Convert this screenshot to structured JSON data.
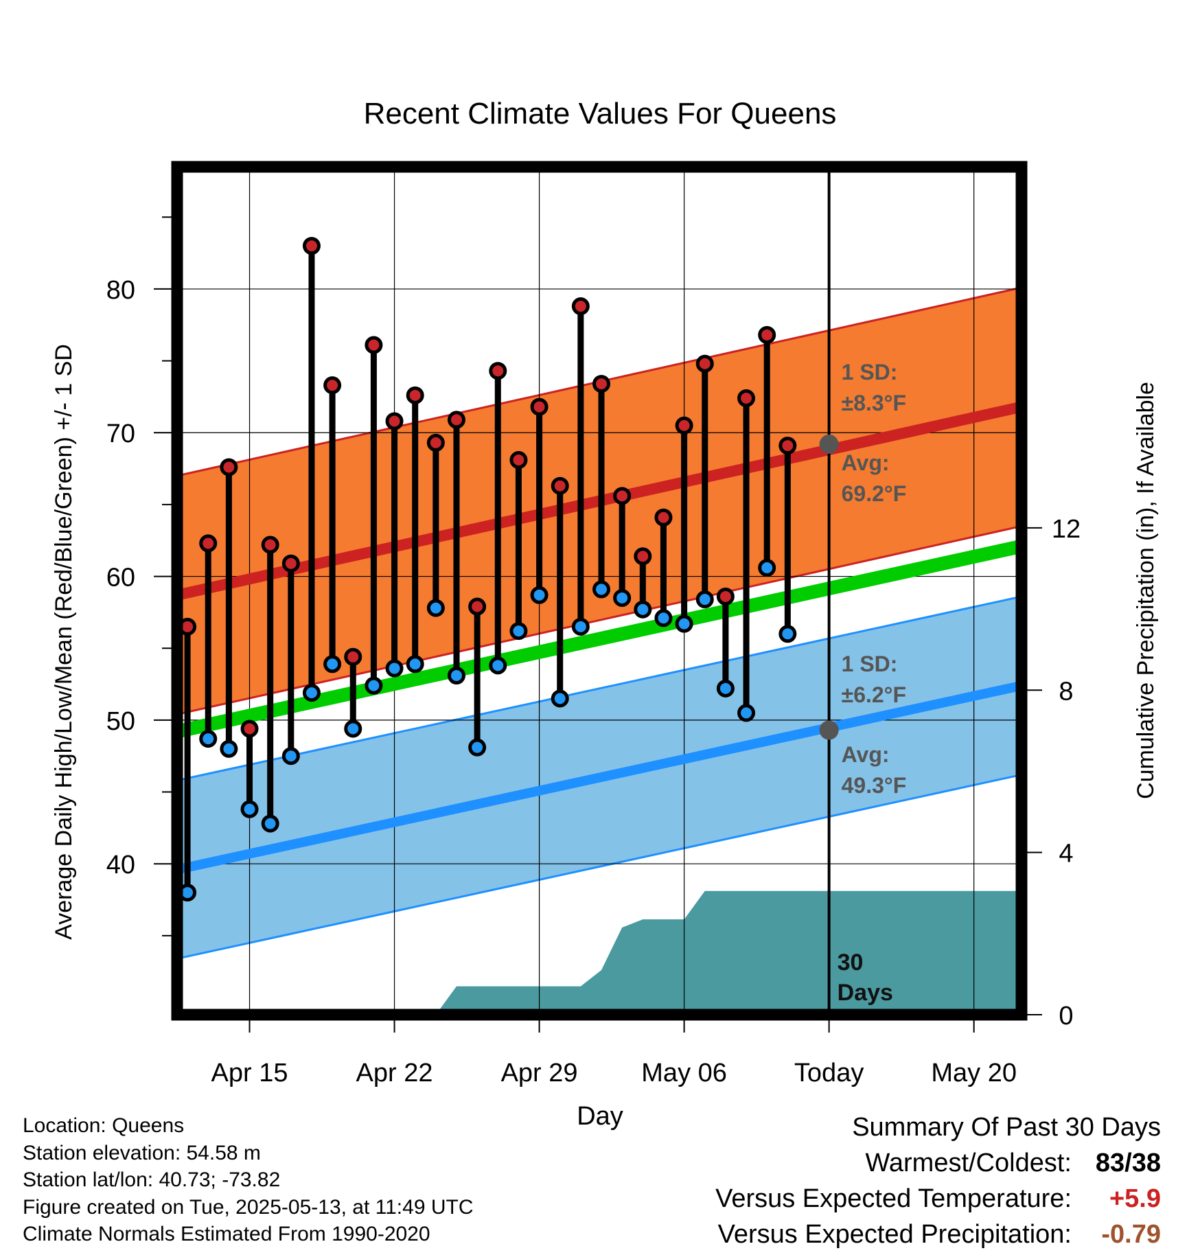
{
  "chart_data": {
    "type": "line",
    "title": "Recent Climate Values For Queens",
    "xlabel": "Day",
    "ylabel": "Average Daily High/Low/Mean (Red/Blue/Green) +/- 1 SD",
    "y2label": "Cumulative Precipitation (in), If Available",
    "x_start_date": "2025-04-12",
    "xlim_days": [
      -0.5,
      40.3
    ],
    "ylim": [
      29.5,
      88.5
    ],
    "y2lim": [
      0,
      20.9
    ],
    "x_ticks": [
      {
        "date": "2025-04-15",
        "label": "Apr 15"
      },
      {
        "date": "2025-04-22",
        "label": "Apr 22"
      },
      {
        "date": "2025-04-29",
        "label": "Apr 29"
      },
      {
        "date": "2025-05-06",
        "label": "May 06"
      },
      {
        "date": "2025-05-13",
        "label": "Today"
      },
      {
        "date": "2025-05-20",
        "label": "May 20"
      }
    ],
    "y_ticks": [
      40,
      50,
      60,
      70,
      80
    ],
    "y_minor_ticks": [
      35,
      45,
      55,
      65,
      75,
      85
    ],
    "y2_ticks": [
      0,
      4,
      8,
      12
    ],
    "today": "2025-05-13",
    "grid": true,
    "normal_high": {
      "start": 58.7,
      "end": 71.8,
      "sd_label": "1 SD:",
      "sd_value": "±8.3°F",
      "avg_label": "Avg:",
      "avg_value": "69.2°F",
      "today_value": 69.2
    },
    "normal_low": {
      "start": 39.6,
      "end": 52.4,
      "sd_label": "1 SD:",
      "sd_value": "±6.2°F",
      "avg_label": "Avg:",
      "avg_value": "49.3°F",
      "today_value": 49.3
    },
    "normal_mean": {
      "start": 49.2,
      "end": 62.1
    },
    "observed": [
      {
        "date": "2025-04-12",
        "high": 56.5,
        "low": 38.0
      },
      {
        "date": "2025-04-13",
        "high": 62.3,
        "low": 48.7
      },
      {
        "date": "2025-04-14",
        "high": 67.6,
        "low": 48.0
      },
      {
        "date": "2025-04-15",
        "high": 49.4,
        "low": 43.8
      },
      {
        "date": "2025-04-16",
        "high": 62.2,
        "low": 42.8
      },
      {
        "date": "2025-04-17",
        "high": 60.9,
        "low": 47.5
      },
      {
        "date": "2025-04-18",
        "high": 83.0,
        "low": 51.9
      },
      {
        "date": "2025-04-19",
        "high": 73.3,
        "low": 53.9
      },
      {
        "date": "2025-04-20",
        "high": 54.4,
        "low": 49.4
      },
      {
        "date": "2025-04-21",
        "high": 76.1,
        "low": 52.4
      },
      {
        "date": "2025-04-22",
        "high": 70.8,
        "low": 53.6
      },
      {
        "date": "2025-04-23",
        "high": 72.6,
        "low": 53.9
      },
      {
        "date": "2025-04-24",
        "high": 69.3,
        "low": 57.8
      },
      {
        "date": "2025-04-25",
        "high": 70.9,
        "low": 53.1
      },
      {
        "date": "2025-04-26",
        "high": 57.9,
        "low": 48.1
      },
      {
        "date": "2025-04-27",
        "high": 74.3,
        "low": 53.8
      },
      {
        "date": "2025-04-28",
        "high": 68.1,
        "low": 56.2
      },
      {
        "date": "2025-04-29",
        "high": 71.8,
        "low": 58.7
      },
      {
        "date": "2025-04-30",
        "high": 66.3,
        "low": 51.5
      },
      {
        "date": "2025-05-01",
        "high": 78.8,
        "low": 56.5
      },
      {
        "date": "2025-05-02",
        "high": 73.4,
        "low": 59.1
      },
      {
        "date": "2025-05-03",
        "high": 65.6,
        "low": 58.5
      },
      {
        "date": "2025-05-04",
        "high": 61.4,
        "low": 57.7
      },
      {
        "date": "2025-05-05",
        "high": 64.1,
        "low": 57.1
      },
      {
        "date": "2025-05-06",
        "high": 70.5,
        "low": 56.7
      },
      {
        "date": "2025-05-07",
        "high": 74.8,
        "low": 58.4
      },
      {
        "date": "2025-05-08",
        "high": 58.6,
        "low": 52.2
      },
      {
        "date": "2025-05-09",
        "high": 72.4,
        "low": 50.5
      },
      {
        "date": "2025-05-10",
        "high": 76.8,
        "low": 60.6
      },
      {
        "date": "2025-05-11",
        "high": 69.1,
        "low": 56.0
      }
    ],
    "cumulative_precip": [
      {
        "date": "2025-04-24",
        "value": 0.0
      },
      {
        "date": "2025-04-25",
        "value": 0.7
      },
      {
        "date": "2025-04-30",
        "value": 0.7
      },
      {
        "date": "2025-05-01",
        "value": 0.7
      },
      {
        "date": "2025-05-02",
        "value": 1.1
      },
      {
        "date": "2025-05-03",
        "value": 2.15
      },
      {
        "date": "2025-05-04",
        "value": 2.35
      },
      {
        "date": "2025-05-06",
        "value": 2.35
      },
      {
        "date": "2025-05-07",
        "value": 3.05
      },
      {
        "date": "2025-05-23",
        "value": 3.05
      }
    ],
    "days_label": "30\nDays"
  },
  "info": {
    "location": "Location: Queens",
    "elevation": "Station elevation: 54.58 m",
    "latlon": "Station lat/lon: 40.73; -73.82",
    "created": "Figure created on Tue, 2025-05-13, at 11:49 UTC",
    "normals": "Climate Normals Estimated From 1990-2020"
  },
  "summary": {
    "header": "Summary Of Past 30 Days",
    "warmest_label": "Warmest/Coldest:",
    "warmest_value": "83/38",
    "temp_label": "Versus Expected Temperature:",
    "temp_value": "+5.9",
    "precip_label": "Versus Expected Precipitation:",
    "precip_value": "-0.79"
  },
  "colors": {
    "high_band": "#f47b30",
    "high_line": "#cc2222",
    "low_band": "#85c2e8",
    "low_line": "#1e90ff",
    "mean_line": "#00cc00",
    "precip": "#4a9aa0",
    "high_dot": "#c8262a",
    "low_dot": "#2196f3",
    "avg_dot": "#555555"
  }
}
